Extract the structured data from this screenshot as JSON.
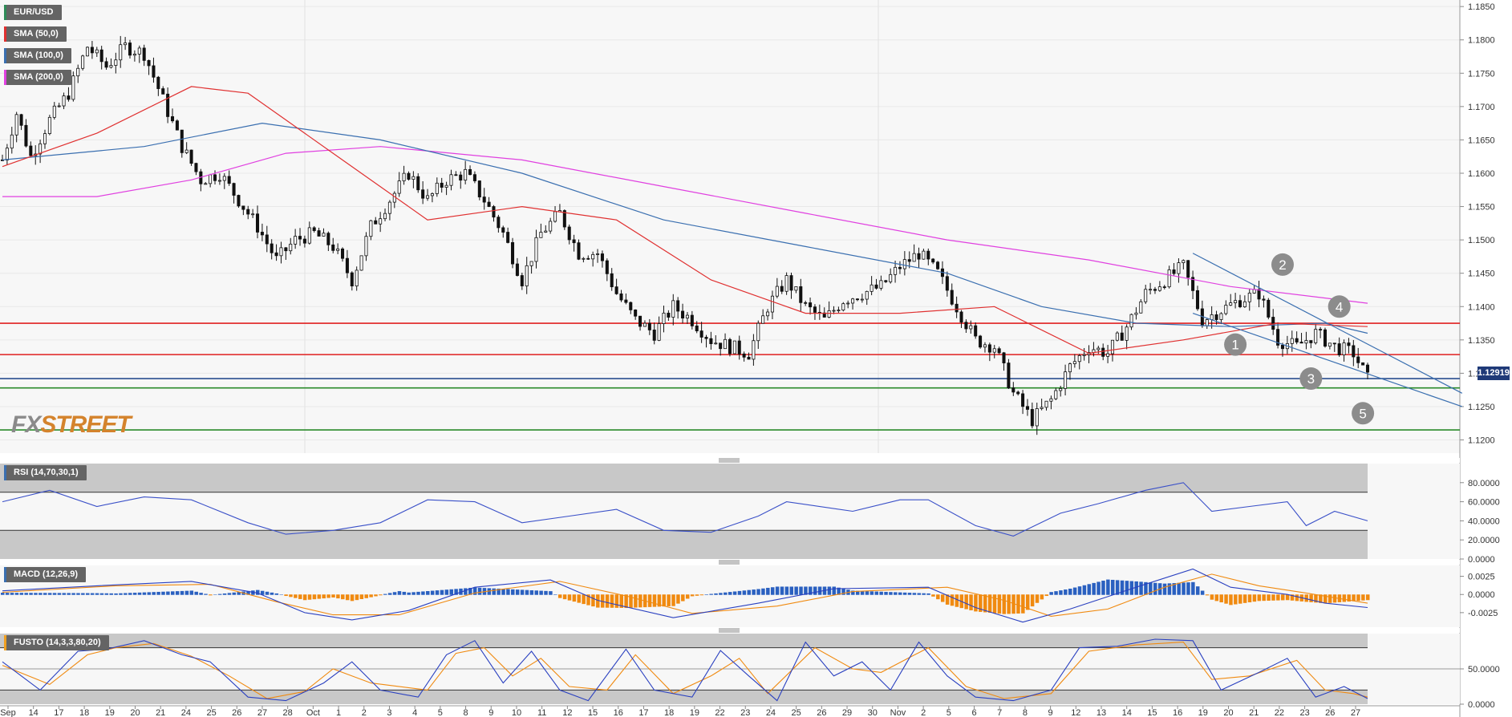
{
  "instrument": "EUR/USD",
  "legend": [
    {
      "label": "EUR/USD",
      "color": "#2e8b57"
    },
    {
      "label": "SMA (50,0)",
      "color": "#e03030"
    },
    {
      "label": "SMA (100,0)",
      "color": "#3a6fb0"
    },
    {
      "label": "SMA (200,0)",
      "color": "#e040e0"
    }
  ],
  "logo": {
    "part1": "FX",
    "part2": "STREET"
  },
  "current_price_label": "1.12919",
  "panels": {
    "rsi": {
      "label": "RSI (14,70,30,1)",
      "color": "#3a6fb0",
      "ticks": [
        "80.0000",
        "60.0000",
        "40.0000",
        "20.0000",
        "0.0000"
      ]
    },
    "macd": {
      "label": "MACD (12,26,9)",
      "color": "#3a6fb0",
      "ticks": [
        "0.0025",
        "0.0000",
        "-0.0025"
      ]
    },
    "fusto": {
      "label": "FUSTO (14,3,3,80,20)",
      "color": "#f0a020",
      "ticks": [
        "50.0000",
        "0.0000"
      ]
    }
  },
  "chart_data": {
    "type": "candlestick",
    "title": "",
    "y_ticks": [
      "1.1850",
      "1.1800",
      "1.1750",
      "1.1700",
      "1.1650",
      "1.1600",
      "1.1550",
      "1.1500",
      "1.1450",
      "1.1400",
      "1.1350",
      "1.1300",
      "1.1250",
      "1.1200"
    ],
    "ylim": [
      1.1185,
      1.1855
    ],
    "x_labels": [
      "Sep",
      "14",
      "17",
      "18",
      "19",
      "20",
      "21",
      "24",
      "25",
      "26",
      "27",
      "28",
      "Oct",
      "1",
      "2",
      "3",
      "4",
      "5",
      "8",
      "9",
      "10",
      "11",
      "12",
      "15",
      "16",
      "17",
      "18",
      "19",
      "22",
      "23",
      "24",
      "25",
      "26",
      "29",
      "30",
      "Nov",
      "2",
      "5",
      "6",
      "7",
      "8",
      "9",
      "12",
      "13",
      "14",
      "15",
      "16",
      "19",
      "20",
      "21",
      "22",
      "23",
      "26",
      "27"
    ],
    "close_path": [
      [
        0,
        1.162
      ],
      [
        3,
        1.169
      ],
      [
        6,
        1.1625
      ],
      [
        10,
        1.168
      ],
      [
        14,
        1.172
      ],
      [
        18,
        1.179
      ],
      [
        22,
        1.176
      ],
      [
        26,
        1.179
      ],
      [
        30,
        1.178
      ],
      [
        34,
        1.171
      ],
      [
        38,
        1.164
      ],
      [
        42,
        1.159
      ],
      [
        46,
        1.16
      ],
      [
        50,
        1.156
      ],
      [
        54,
        1.152
      ],
      [
        58,
        1.147
      ],
      [
        62,
        1.15
      ],
      [
        66,
        1.151
      ],
      [
        70,
        1.149
      ],
      [
        74,
        1.144
      ],
      [
        78,
        1.152
      ],
      [
        82,
        1.156
      ],
      [
        86,
        1.16
      ],
      [
        90,
        1.156
      ],
      [
        94,
        1.159
      ],
      [
        98,
        1.16
      ],
      [
        102,
        1.156
      ],
      [
        106,
        1.151
      ],
      [
        110,
        1.144
      ],
      [
        114,
        1.151
      ],
      [
        118,
        1.154
      ],
      [
        122,
        1.148
      ],
      [
        126,
        1.148
      ],
      [
        130,
        1.142
      ],
      [
        134,
        1.138
      ],
      [
        138,
        1.136
      ],
      [
        142,
        1.14
      ],
      [
        146,
        1.138
      ],
      [
        150,
        1.135
      ],
      [
        154,
        1.134
      ],
      [
        158,
        1.133
      ],
      [
        162,
        1.14
      ],
      [
        166,
        1.144
      ],
      [
        170,
        1.14
      ],
      [
        174,
        1.138
      ],
      [
        178,
        1.141
      ],
      [
        182,
        1.142
      ],
      [
        186,
        1.143
      ],
      [
        190,
        1.146
      ],
      [
        194,
        1.148
      ],
      [
        198,
        1.145
      ],
      [
        202,
        1.14
      ],
      [
        206,
        1.135
      ],
      [
        210,
        1.134
      ],
      [
        214,
        1.127
      ],
      [
        218,
        1.123
      ],
      [
        222,
        1.126
      ],
      [
        226,
        1.131
      ],
      [
        230,
        1.134
      ],
      [
        234,
        1.133
      ],
      [
        238,
        1.137
      ],
      [
        242,
        1.142
      ],
      [
        246,
        1.144
      ],
      [
        250,
        1.146
      ],
      [
        254,
        1.138
      ],
      [
        258,
        1.1395
      ],
      [
        262,
        1.141
      ],
      [
        266,
        1.142
      ],
      [
        270,
        1.135
      ],
      [
        274,
        1.134
      ],
      [
        278,
        1.136
      ],
      [
        282,
        1.134
      ],
      [
        286,
        1.133
      ],
      [
        289,
        1.1292
      ]
    ],
    "sma50_path": [
      [
        0,
        1.161
      ],
      [
        20,
        1.166
      ],
      [
        40,
        1.173
      ],
      [
        52,
        1.172
      ],
      [
        70,
        1.163
      ],
      [
        90,
        1.153
      ],
      [
        110,
        1.155
      ],
      [
        130,
        1.153
      ],
      [
        150,
        1.144
      ],
      [
        170,
        1.139
      ],
      [
        190,
        1.139
      ],
      [
        210,
        1.14
      ],
      [
        230,
        1.133
      ],
      [
        250,
        1.135
      ],
      [
        270,
        1.1375
      ],
      [
        289,
        1.137
      ]
    ],
    "sma100_path": [
      [
        0,
        1.162
      ],
      [
        30,
        1.164
      ],
      [
        55,
        1.1675
      ],
      [
        80,
        1.165
      ],
      [
        110,
        1.16
      ],
      [
        140,
        1.153
      ],
      [
        170,
        1.149
      ],
      [
        200,
        1.145
      ],
      [
        220,
        1.14
      ],
      [
        240,
        1.1375
      ],
      [
        260,
        1.137
      ],
      [
        280,
        1.1375
      ],
      [
        289,
        1.136
      ]
    ],
    "sma200_path": [
      [
        0,
        1.1565
      ],
      [
        20,
        1.1565
      ],
      [
        40,
        1.159
      ],
      [
        60,
        1.163
      ],
      [
        80,
        1.164
      ],
      [
        110,
        1.162
      ],
      [
        140,
        1.158
      ],
      [
        170,
        1.154
      ],
      [
        200,
        1.15
      ],
      [
        230,
        1.147
      ],
      [
        260,
        1.143
      ],
      [
        289,
        1.1405
      ]
    ],
    "horizontal_levels": [
      {
        "value": 1.1375,
        "color": "#e02020"
      },
      {
        "value": 1.1328,
        "color": "#e02020"
      },
      {
        "value": 1.1292,
        "color": "#2a4f8f"
      },
      {
        "value": 1.1278,
        "color": "#2a8a2a"
      },
      {
        "value": 1.1215,
        "color": "#2a8a2a"
      }
    ],
    "trendlines": [
      {
        "from": [
          252,
          1.148
        ],
        "to": [
          309,
          1.127
        ]
      },
      {
        "from": [
          252,
          1.139
        ],
        "to": [
          309,
          1.125
        ]
      }
    ],
    "markers": [
      {
        "label": "1",
        "x": 261,
        "y": 1.1343
      },
      {
        "label": "2",
        "x": 271,
        "y": 1.1463
      },
      {
        "label": "3",
        "x": 277,
        "y": 1.1292
      },
      {
        "label": "4",
        "x": 283,
        "y": 1.14
      },
      {
        "label": "5",
        "x": 288,
        "y": 1.124
      }
    ],
    "rsi_path": [
      [
        0,
        60
      ],
      [
        10,
        72
      ],
      [
        20,
        55
      ],
      [
        30,
        65
      ],
      [
        40,
        62
      ],
      [
        52,
        38
      ],
      [
        60,
        26
      ],
      [
        70,
        30
      ],
      [
        80,
        38
      ],
      [
        90,
        62
      ],
      [
        100,
        60
      ],
      [
        110,
        38
      ],
      [
        120,
        45
      ],
      [
        130,
        52
      ],
      [
        140,
        30
      ],
      [
        150,
        28
      ],
      [
        160,
        45
      ],
      [
        166,
        60
      ],
      [
        180,
        50
      ],
      [
        190,
        62
      ],
      [
        196,
        62
      ],
      [
        206,
        35
      ],
      [
        214,
        24
      ],
      [
        224,
        48
      ],
      [
        232,
        58
      ],
      [
        242,
        72
      ],
      [
        250,
        80
      ],
      [
        256,
        50
      ],
      [
        264,
        55
      ],
      [
        272,
        60
      ],
      [
        276,
        35
      ],
      [
        282,
        50
      ],
      [
        289,
        40
      ]
    ],
    "macd_line": [
      [
        0,
        0.0005
      ],
      [
        20,
        0.0012
      ],
      [
        40,
        0.0018
      ],
      [
        54,
        0.0002
      ],
      [
        64,
        -0.0025
      ],
      [
        74,
        -0.0035
      ],
      [
        86,
        -0.0022
      ],
      [
        100,
        0.001
      ],
      [
        116,
        0.002
      ],
      [
        126,
        -0.0008
      ],
      [
        142,
        -0.0032
      ],
      [
        160,
        -0.0012
      ],
      [
        176,
        0.0008
      ],
      [
        196,
        0.001
      ],
      [
        206,
        -0.0018
      ],
      [
        216,
        -0.0038
      ],
      [
        226,
        -0.002
      ],
      [
        240,
        0.001
      ],
      [
        252,
        0.0035
      ],
      [
        260,
        0.001
      ],
      [
        272,
        0.0
      ],
      [
        280,
        -0.0012
      ],
      [
        289,
        -0.0018
      ]
    ],
    "macd_signal": [
      [
        0,
        0.0003
      ],
      [
        24,
        0.0012
      ],
      [
        44,
        0.0014
      ],
      [
        58,
        -0.001
      ],
      [
        70,
        -0.0028
      ],
      [
        84,
        -0.0028
      ],
      [
        100,
        0.0002
      ],
      [
        118,
        0.0018
      ],
      [
        132,
        -0.0002
      ],
      [
        146,
        -0.0026
      ],
      [
        164,
        -0.0016
      ],
      [
        180,
        0.0004
      ],
      [
        200,
        0.001
      ],
      [
        212,
        -0.0008
      ],
      [
        222,
        -0.003
      ],
      [
        234,
        -0.002
      ],
      [
        246,
        0.001
      ],
      [
        256,
        0.0028
      ],
      [
        266,
        0.0012
      ],
      [
        276,
        0.0002
      ],
      [
        289,
        -0.0012
      ]
    ],
    "fusto_k": [
      [
        0,
        60
      ],
      [
        8,
        20
      ],
      [
        16,
        75
      ],
      [
        22,
        78
      ],
      [
        30,
        90
      ],
      [
        38,
        70
      ],
      [
        44,
        60
      ],
      [
        52,
        10
      ],
      [
        60,
        5
      ],
      [
        68,
        30
      ],
      [
        74,
        60
      ],
      [
        80,
        20
      ],
      [
        88,
        10
      ],
      [
        94,
        70
      ],
      [
        100,
        90
      ],
      [
        106,
        30
      ],
      [
        112,
        75
      ],
      [
        118,
        20
      ],
      [
        124,
        5
      ],
      [
        132,
        78
      ],
      [
        138,
        20
      ],
      [
        146,
        10
      ],
      [
        152,
        76
      ],
      [
        158,
        40
      ],
      [
        164,
        5
      ],
      [
        170,
        88
      ],
      [
        176,
        40
      ],
      [
        182,
        60
      ],
      [
        188,
        20
      ],
      [
        194,
        88
      ],
      [
        200,
        40
      ],
      [
        206,
        10
      ],
      [
        214,
        5
      ],
      [
        222,
        20
      ],
      [
        228,
        80
      ],
      [
        236,
        82
      ],
      [
        244,
        92
      ],
      [
        252,
        90
      ],
      [
        258,
        20
      ],
      [
        266,
        45
      ],
      [
        272,
        65
      ],
      [
        278,
        10
      ],
      [
        284,
        25
      ],
      [
        289,
        8
      ]
    ],
    "fusto_d": [
      [
        0,
        55
      ],
      [
        10,
        28
      ],
      [
        18,
        70
      ],
      [
        24,
        80
      ],
      [
        32,
        86
      ],
      [
        40,
        68
      ],
      [
        48,
        40
      ],
      [
        56,
        8
      ],
      [
        64,
        18
      ],
      [
        70,
        50
      ],
      [
        78,
        30
      ],
      [
        90,
        20
      ],
      [
        96,
        72
      ],
      [
        102,
        80
      ],
      [
        108,
        40
      ],
      [
        114,
        65
      ],
      [
        120,
        25
      ],
      [
        128,
        20
      ],
      [
        134,
        70
      ],
      [
        142,
        15
      ],
      [
        150,
        40
      ],
      [
        156,
        65
      ],
      [
        162,
        15
      ],
      [
        172,
        80
      ],
      [
        180,
        50
      ],
      [
        186,
        45
      ],
      [
        196,
        80
      ],
      [
        204,
        25
      ],
      [
        212,
        8
      ],
      [
        222,
        15
      ],
      [
        230,
        75
      ],
      [
        240,
        84
      ],
      [
        250,
        88
      ],
      [
        256,
        35
      ],
      [
        264,
        40
      ],
      [
        274,
        62
      ],
      [
        280,
        20
      ],
      [
        286,
        15
      ],
      [
        289,
        10
      ]
    ]
  }
}
